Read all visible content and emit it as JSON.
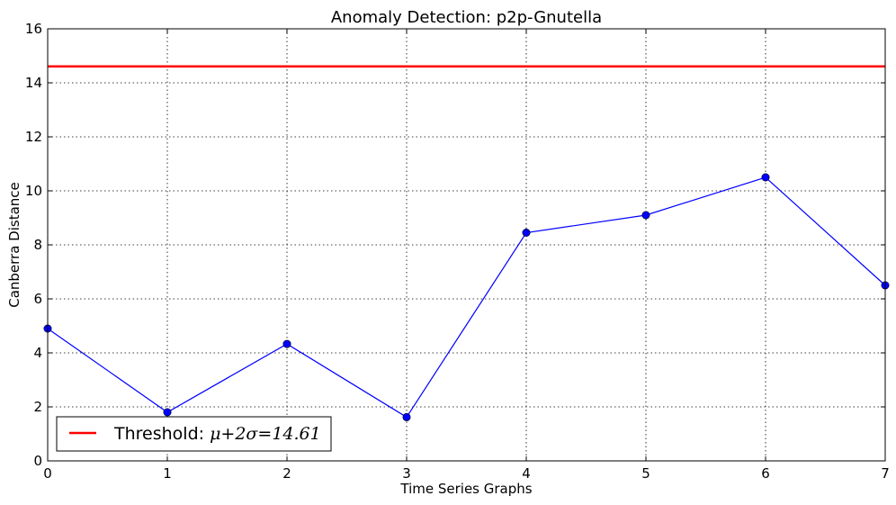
{
  "chart_data": {
    "type": "line",
    "title": "Anomaly Detection: p2p-Gnutella",
    "xlabel": "Time Series Graphs",
    "ylabel": "Canberra Distance",
    "xlim": [
      0,
      7
    ],
    "ylim": [
      0,
      16
    ],
    "xticks": [
      "0",
      "1",
      "2",
      "3",
      "4",
      "5",
      "6",
      "7"
    ],
    "yticks": [
      "0",
      "2",
      "4",
      "6",
      "8",
      "10",
      "12",
      "14",
      "16"
    ],
    "grid": true,
    "legend_position": "bottom-left",
    "series": [
      {
        "name": "Canberra Distance",
        "color": "#0000ff",
        "marker": "circle",
        "x": [
          0,
          1,
          2,
          3,
          4,
          5,
          6,
          7
        ],
        "y": [
          4.9,
          1.8,
          4.33,
          1.62,
          8.45,
          9.1,
          10.5,
          6.5
        ]
      }
    ],
    "threshold": {
      "value": 14.61,
      "color": "#ff0000",
      "legend_prefix": "Threshold: ",
      "legend_formula": "μ+2σ=14.61"
    }
  }
}
